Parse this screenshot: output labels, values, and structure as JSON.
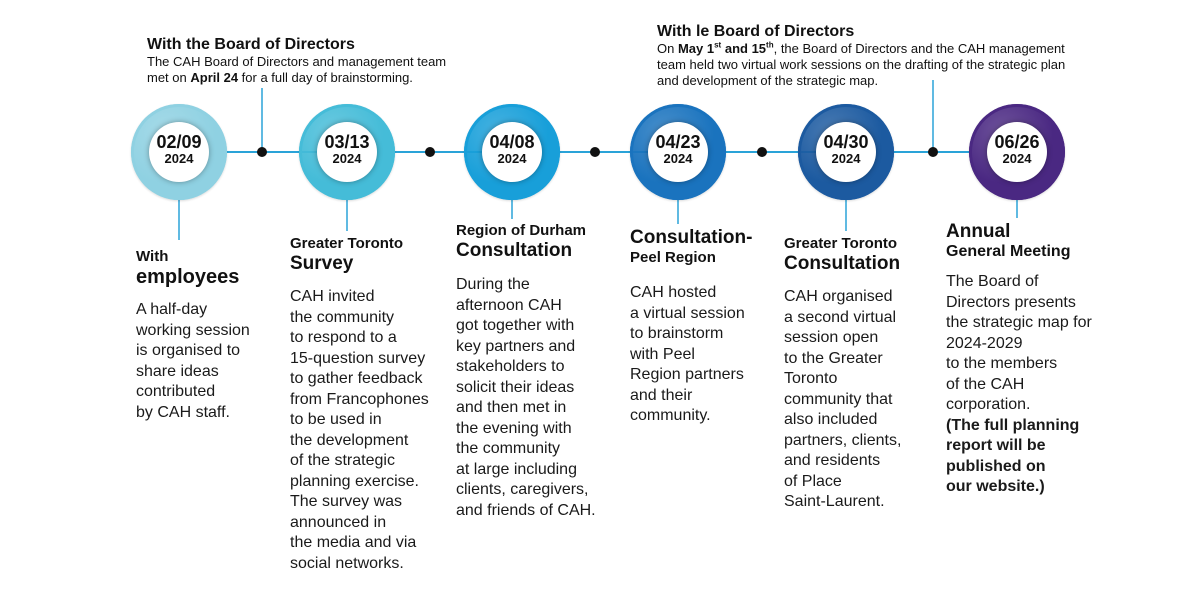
{
  "colors": {
    "line": "#2aa3d8",
    "dot": "#111111",
    "nodes": [
      "#8fd1e2",
      "#45bcd8",
      "#189fd9",
      "#1a73be",
      "#1c5aa0",
      "#4a2882"
    ]
  },
  "top_notes": [
    {
      "title": "With the Board of Directors",
      "body_1": "The CAH Board of Directors and management team",
      "body_2_pre": "met on ",
      "body_2_bold": "April 24",
      "body_2_post": " for a full day of brainstorming."
    },
    {
      "title": "With le Board of Directors",
      "line1_pre": "On ",
      "line1_bold1": "May 1",
      "line1_sup1": "st",
      "line1_bold2": " and 15",
      "line1_sup2": "th",
      "line1_post": ", the Board of Directors and the CAH management",
      "line2": "team held two virtual work sessions on the drafting of the strategic plan",
      "line3": "and development of the strategic map."
    }
  ],
  "milestones": [
    {
      "date": "02/09",
      "year": "2024",
      "heading_a": "With",
      "heading_b": "employees",
      "desc": [
        "A half-day",
        "working session",
        "is organised to",
        "share ideas",
        "contributed",
        "by CAH staff."
      ]
    },
    {
      "date": "03/13",
      "year": "2024",
      "heading_a": "Greater Toronto",
      "heading_b": "Survey",
      "desc": [
        "CAH invited",
        "the community",
        "to respond to a",
        "15-question survey",
        "to gather feedback",
        "from Francophones",
        "to be used in",
        "the development",
        "of the strategic",
        "planning exercise.",
        "The survey was",
        "announced in",
        "the media and via",
        "social networks."
      ]
    },
    {
      "date": "04/08",
      "year": "2024",
      "heading_a": "Region of Durham",
      "heading_b": "Consultation",
      "desc": [
        "During the",
        "afternoon CAH",
        "got together with",
        "key partners and",
        "stakeholders to",
        "solicit their ideas",
        "and then met in",
        "the evening with",
        "the community",
        "at large including",
        "clients, caregivers,",
        "and friends of CAH."
      ]
    },
    {
      "date": "04/23",
      "year": "2024",
      "heading_a": "Consultation-",
      "heading_b": "Peel Region",
      "desc": [
        "CAH hosted",
        "a virtual session",
        "to brainstorm",
        "with Peel",
        "Region partners",
        "and their",
        "community."
      ]
    },
    {
      "date": "04/30",
      "year": "2024",
      "heading_a": "Greater Toronto",
      "heading_b": "Consultation",
      "desc": [
        "CAH organised",
        "a second virtual",
        "session open",
        "to the Greater",
        "Toronto",
        "community that",
        "also included",
        "partners, clients,",
        "and residents",
        "of Place",
        "Saint-Laurent."
      ]
    },
    {
      "date": "06/26",
      "year": "2024",
      "heading_a": "Annual",
      "heading_b": "General Meeting",
      "desc": [
        "The Board of",
        "Directors presents",
        "the strategic map for",
        "2024-2029",
        "to the members",
        "of the CAH",
        "corporation."
      ],
      "desc_bold": [
        "(The full planning",
        "report will be",
        "published on",
        "our website.)"
      ]
    }
  ]
}
